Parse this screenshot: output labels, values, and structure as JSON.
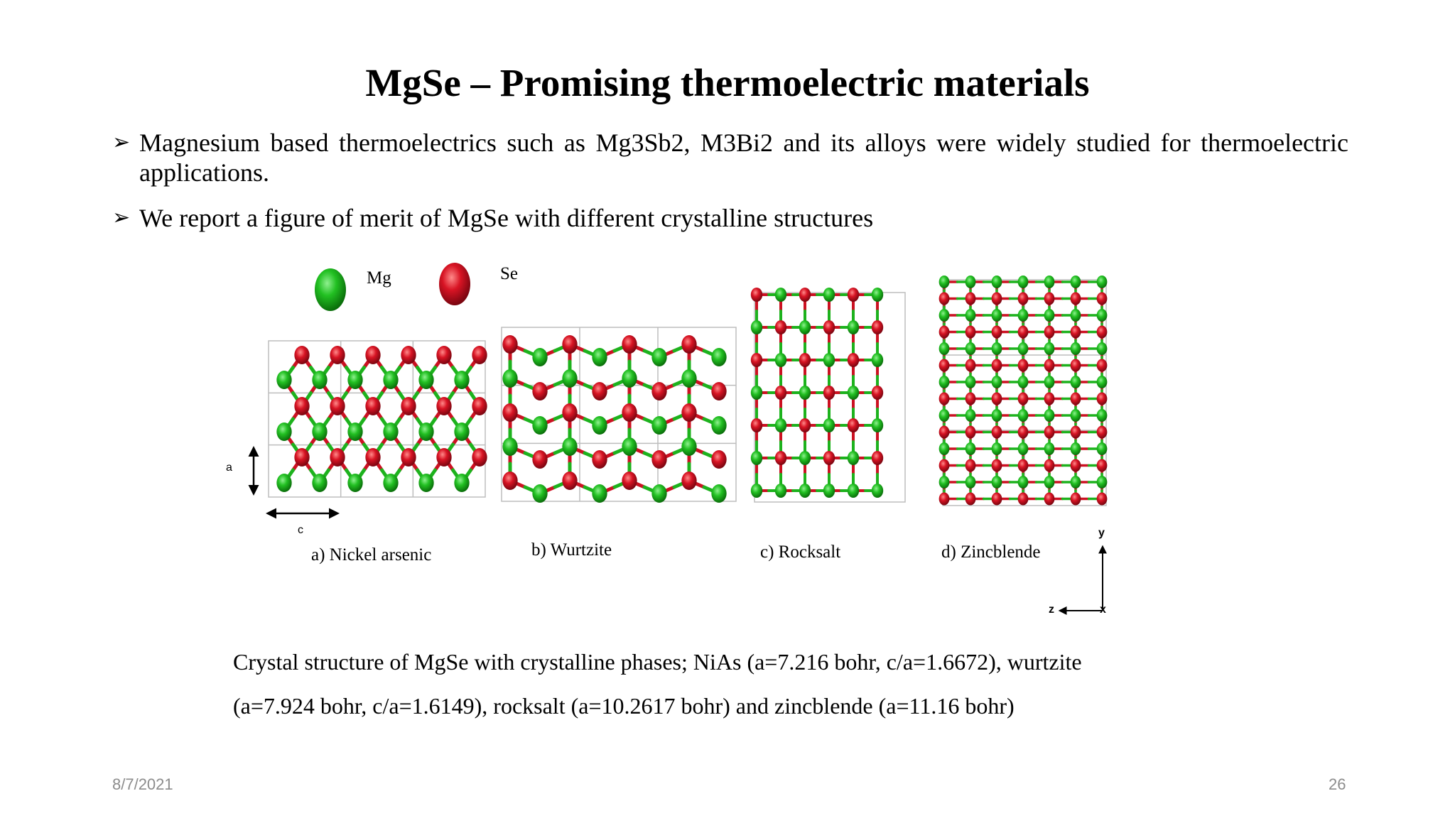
{
  "title": "MgSe – Promising thermoelectric materials",
  "bullets": [
    {
      "marker": "➢",
      "text": "Magnesium based thermoelectrics such as Mg3Sb2, M3Bi2 and its alloys were widely studied for thermoelectric applications."
    },
    {
      "marker": "➢",
      "text": "We report a figure of merit of MgSe with different crystalline structures"
    }
  ],
  "legend": {
    "mg_label": "Mg",
    "se_label": "Se",
    "mg_color": "#1db21d",
    "se_color": "#cc1122"
  },
  "panels": [
    {
      "caption": "a) Nickel arsenic"
    },
    {
      "caption": "b) Wurtzite"
    },
    {
      "caption": "c) Rocksalt"
    },
    {
      "caption": "d) Zincblende"
    }
  ],
  "lattice_labels": {
    "a": "a",
    "c": "c"
  },
  "axes_labels": {
    "y": "y",
    "z": "z",
    "x": "x"
  },
  "figure_caption_line1": "Crystal structure of MgSe with crystalline phases; NiAs (a=7.216 bohr, c/a=1.6672), wurtzite",
  "figure_caption_line2": "(a=7.924 bohr, c/a=1.6149), rocksalt (a=10.2617 bohr) and zincblende (a=11.16 bohr)",
  "footer": {
    "date": "8/7/2021",
    "page": "26"
  }
}
